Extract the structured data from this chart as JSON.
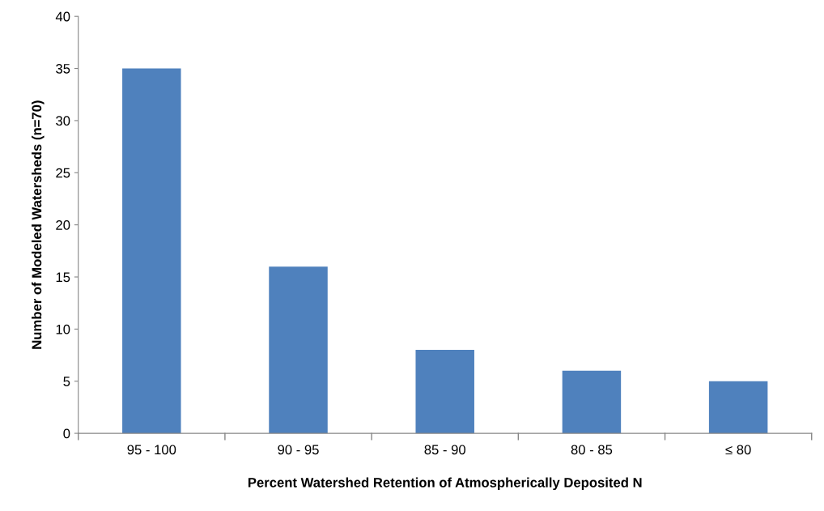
{
  "chart_data": {
    "type": "bar",
    "xlabel": "Percent Watershed Retention of Atmospherically Deposited N",
    "ylabel": "Number of Modeled Watersheds (n=70)",
    "categories": [
      "95 - 100",
      "90 - 95",
      "85 - 90",
      "80 - 85",
      "≤ 80"
    ],
    "values": [
      35,
      16,
      8,
      6,
      5
    ],
    "color": "#4f81bd",
    "ylim": [
      0,
      40
    ],
    "yticks": [
      0,
      5,
      10,
      15,
      20,
      25,
      30,
      35,
      40
    ],
    "grid": false,
    "legend": false
  }
}
